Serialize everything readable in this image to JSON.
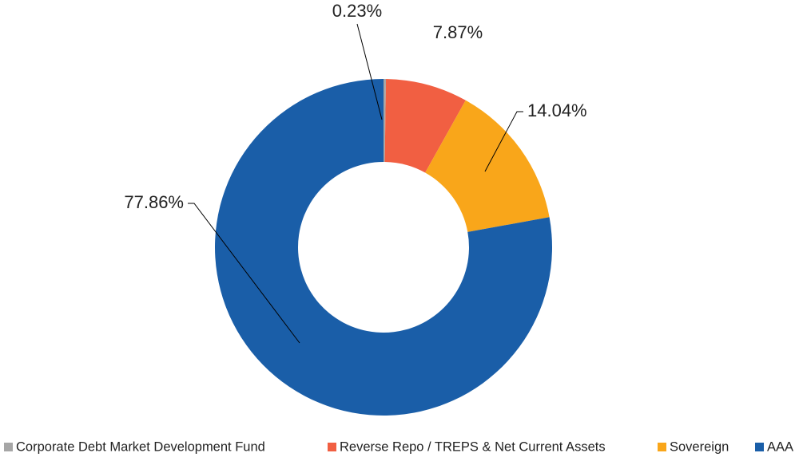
{
  "chart_data": {
    "type": "donut",
    "categories": [
      "Corporate Debt Market Development Fund",
      "Reverse Repo / TREPS & Net Current Assets",
      "Sovereign",
      "AAA"
    ],
    "values": [
      0.23,
      7.87,
      14.04,
      77.86
    ],
    "value_labels": [
      "0.23%",
      "7.87%",
      "14.04%",
      "77.86%"
    ],
    "colors": [
      "#a6a6a6",
      "#f15f42",
      "#f9a61a",
      "#1a5ea8"
    ],
    "legend": "bottom"
  }
}
